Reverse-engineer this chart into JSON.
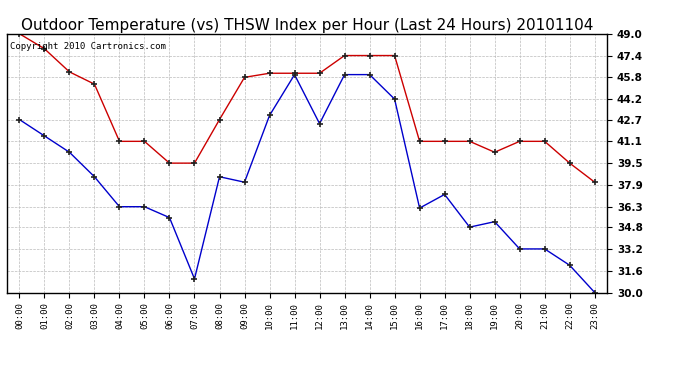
{
  "title": "Outdoor Temperature (vs) THSW Index per Hour (Last 24 Hours) 20101104",
  "copyright": "Copyright 2010 Cartronics.com",
  "hours": [
    "00:00",
    "01:00",
    "02:00",
    "03:00",
    "04:00",
    "05:00",
    "06:00",
    "07:00",
    "08:00",
    "09:00",
    "10:00",
    "11:00",
    "12:00",
    "13:00",
    "14:00",
    "15:00",
    "16:00",
    "17:00",
    "18:00",
    "19:00",
    "20:00",
    "21:00",
    "22:00",
    "23:00"
  ],
  "red_data": [
    49.0,
    47.9,
    46.2,
    45.3,
    41.1,
    41.1,
    39.5,
    39.5,
    42.7,
    45.8,
    46.1,
    46.1,
    46.1,
    47.4,
    47.4,
    47.4,
    41.1,
    41.1,
    41.1,
    40.3,
    41.1,
    41.1,
    39.5,
    38.1
  ],
  "blue_data": [
    42.7,
    41.5,
    40.3,
    38.5,
    36.3,
    36.3,
    35.5,
    31.0,
    38.5,
    38.1,
    43.0,
    46.0,
    42.4,
    46.0,
    46.0,
    44.2,
    36.2,
    37.2,
    34.8,
    35.2,
    33.2,
    33.2,
    32.0,
    30.0
  ],
  "ylim_min": 30.0,
  "ylim_max": 49.0,
  "yticks": [
    30.0,
    31.6,
    33.2,
    34.8,
    36.3,
    37.9,
    39.5,
    41.1,
    42.7,
    44.2,
    45.8,
    47.4,
    49.0
  ],
  "red_color": "#cc0000",
  "blue_color": "#0000cc",
  "background_color": "#ffffff",
  "grid_color": "#bbbbbb",
  "title_fontsize": 11,
  "copyright_fontsize": 6.5
}
